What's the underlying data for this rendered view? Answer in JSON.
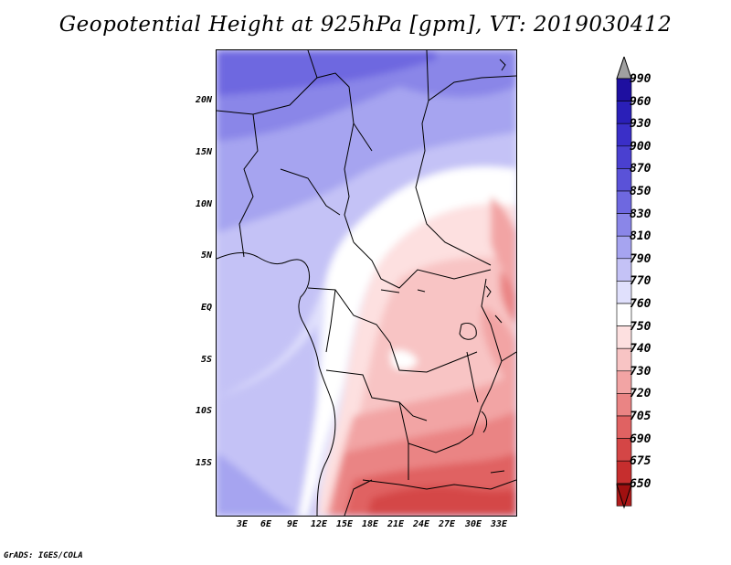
{
  "title": "Geopotential Height at 925hPa [gpm], VT: 2019030412",
  "credit": "GrADS: IGES/COLA",
  "lat_labels": [
    "20N",
    "15N",
    "10N",
    "5N",
    "EQ",
    "5S",
    "10S",
    "15S"
  ],
  "lon_labels": [
    "3E",
    "6E",
    "9E",
    "12E",
    "15E",
    "18E",
    "21E",
    "24E",
    "27E",
    "30E",
    "33E"
  ],
  "legend": {
    "levels": [
      "990",
      "960",
      "930",
      "900",
      "870",
      "850",
      "830",
      "810",
      "790",
      "770",
      "760",
      "750",
      "740",
      "730",
      "720",
      "705",
      "690",
      "675",
      "650"
    ],
    "colors": [
      "#1e0fa0",
      "#2a1fb8",
      "#3a2fc8",
      "#4a40d0",
      "#5a52d8",
      "#6e68e0",
      "#8a86e8",
      "#a6a4f0",
      "#c4c2f6",
      "#e0e0fc",
      "#ffffff",
      "#fde0e0",
      "#f8c4c4",
      "#f2a4a4",
      "#ea8484",
      "#e06262",
      "#d44646",
      "#c62e2e",
      "#b01c1c"
    ],
    "top_arrow_color": "#a0a0a0",
    "bottom_arrow_color": "#a01010"
  }
}
